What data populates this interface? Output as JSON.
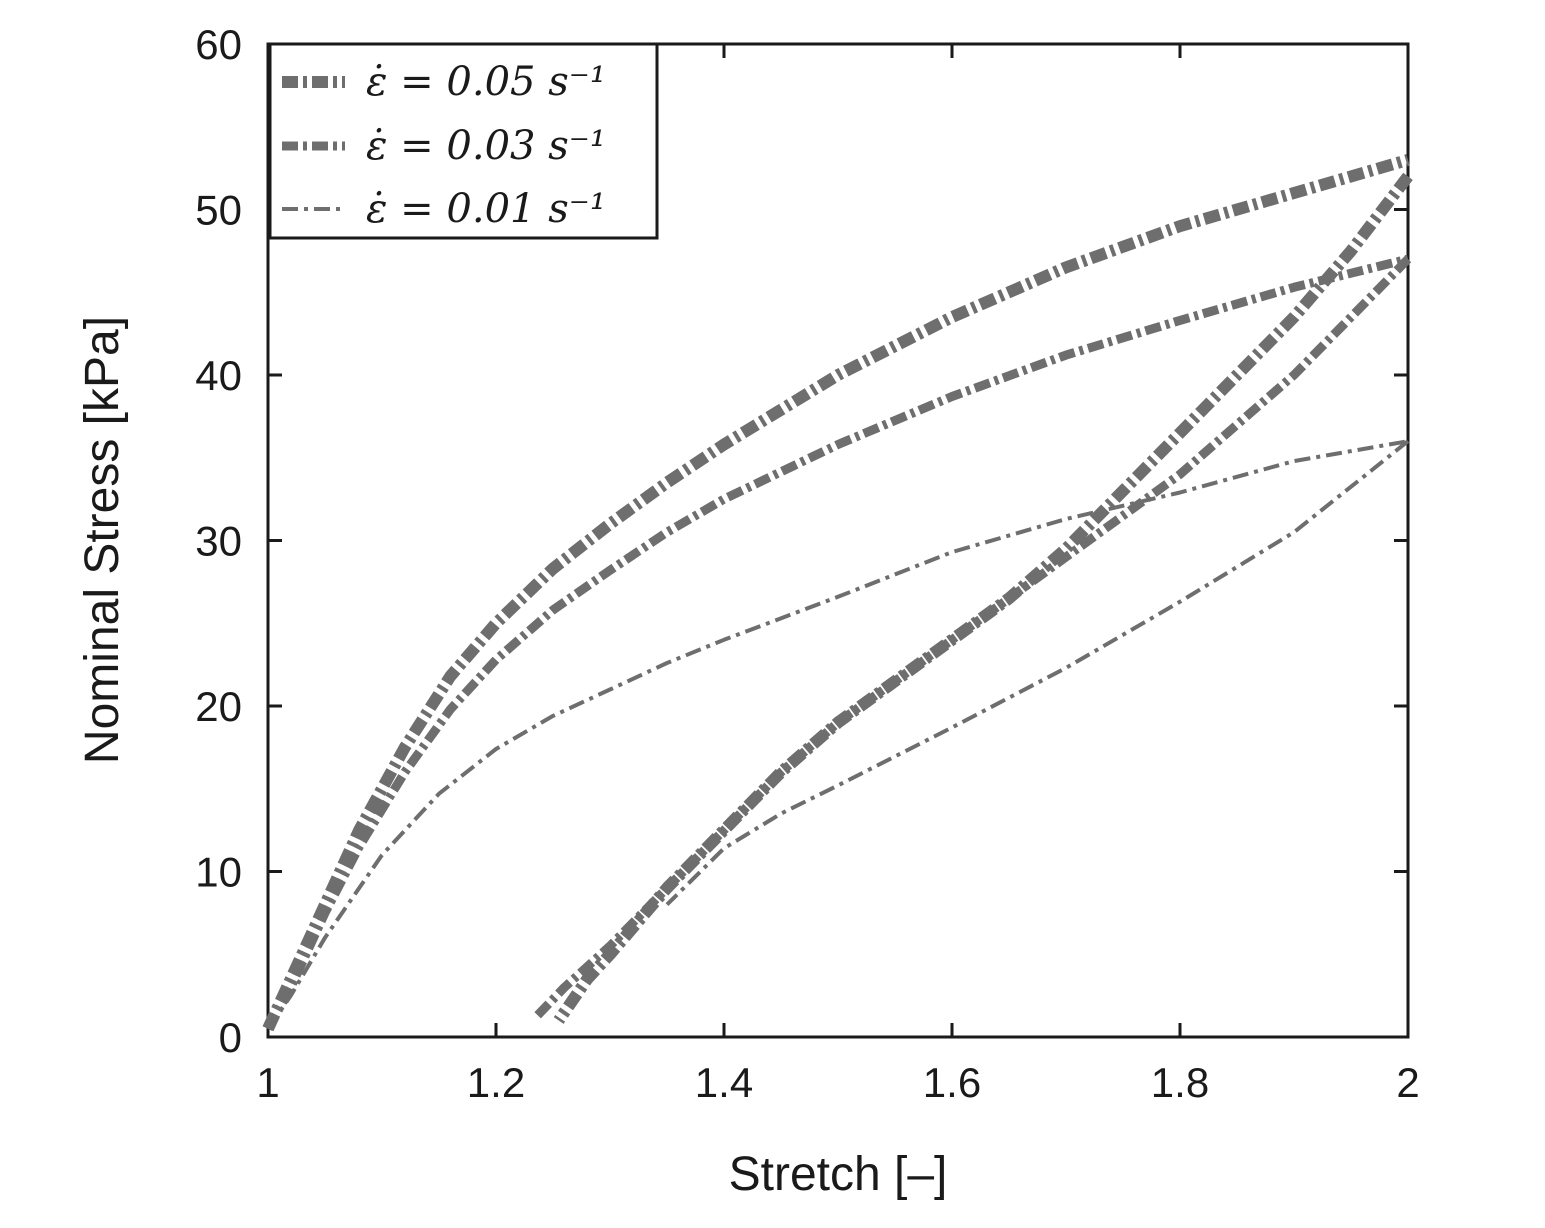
{
  "chart_data": {
    "type": "line",
    "title": "",
    "xlabel": "Stretch [–]",
    "ylabel": "Nominal Stress [kPa]",
    "xlim": [
      1,
      2
    ],
    "ylim": [
      0,
      60
    ],
    "xticks": [
      "1",
      "1.2",
      "1.4",
      "1.6",
      "1.8",
      "2"
    ],
    "yticks": [
      "0",
      "10",
      "20",
      "30",
      "40",
      "50",
      "60"
    ],
    "grid": false,
    "legend_position": "top-left",
    "line_color": "#6e6e6e",
    "series": [
      {
        "name": "ε̇ = 0.05 s⁻¹",
        "loading": {
          "x": [
            1.0,
            1.02,
            1.05,
            1.08,
            1.12,
            1.16,
            1.2,
            1.25,
            1.3,
            1.35,
            1.4,
            1.5,
            1.6,
            1.7,
            1.8,
            1.9,
            2.0
          ],
          "y": [
            0.5,
            3.5,
            8.0,
            12.5,
            17.5,
            21.8,
            25.0,
            28.3,
            31.0,
            33.5,
            35.8,
            40.0,
            43.5,
            46.5,
            49.0,
            51.0,
            53.0
          ]
        },
        "unloading": {
          "x": [
            2.0,
            1.95,
            1.9,
            1.85,
            1.8,
            1.75,
            1.7,
            1.65,
            1.6,
            1.55,
            1.5,
            1.45,
            1.4,
            1.35,
            1.3,
            1.28,
            1.255
          ],
          "y": [
            52.0,
            47.5,
            43.5,
            40.0,
            36.5,
            33.0,
            29.5,
            26.5,
            24.0,
            21.5,
            19.0,
            16.0,
            12.5,
            9.0,
            5.0,
            3.5,
            1.0
          ]
        }
      },
      {
        "name": "ε̇ = 0.03 s⁻¹",
        "loading": {
          "x": [
            1.0,
            1.02,
            1.05,
            1.08,
            1.12,
            1.16,
            1.2,
            1.25,
            1.3,
            1.35,
            1.4,
            1.5,
            1.6,
            1.7,
            1.8,
            1.9,
            2.0
          ],
          "y": [
            0.5,
            3.0,
            7.5,
            11.5,
            16.0,
            19.8,
            22.8,
            25.8,
            28.2,
            30.5,
            32.5,
            35.8,
            38.7,
            41.2,
            43.3,
            45.3,
            47.0
          ]
        },
        "unloading": {
          "x": [
            2.0,
            1.95,
            1.9,
            1.85,
            1.8,
            1.75,
            1.7,
            1.65,
            1.6,
            1.55,
            1.5,
            1.45,
            1.4,
            1.35,
            1.3,
            1.26,
            1.235
          ],
          "y": [
            47.0,
            43.5,
            40.0,
            37.0,
            34.0,
            31.5,
            29.0,
            26.5,
            24.0,
            21.5,
            19.0,
            16.0,
            12.5,
            9.0,
            5.5,
            3.0,
            1.2
          ]
        }
      },
      {
        "name": "ε̇ = 0.01 s⁻¹",
        "loading": {
          "x": [
            1.0,
            1.02,
            1.05,
            1.08,
            1.1,
            1.15,
            1.2,
            1.25,
            1.3,
            1.35,
            1.4,
            1.5,
            1.6,
            1.7,
            1.8,
            1.9,
            2.0
          ],
          "y": [
            0.5,
            2.5,
            6.0,
            9.0,
            11.0,
            14.7,
            17.4,
            19.4,
            21.0,
            22.6,
            24.0,
            26.6,
            29.3,
            31.3,
            32.9,
            34.8,
            36.0
          ]
        },
        "unloading": {
          "x": [
            2.0,
            1.9,
            1.8,
            1.7,
            1.6,
            1.5,
            1.45,
            1.4,
            1.35
          ],
          "y": [
            36.0,
            30.5,
            26.3,
            22.3,
            18.7,
            15.2,
            13.5,
            11.4,
            8.0
          ]
        }
      }
    ]
  }
}
